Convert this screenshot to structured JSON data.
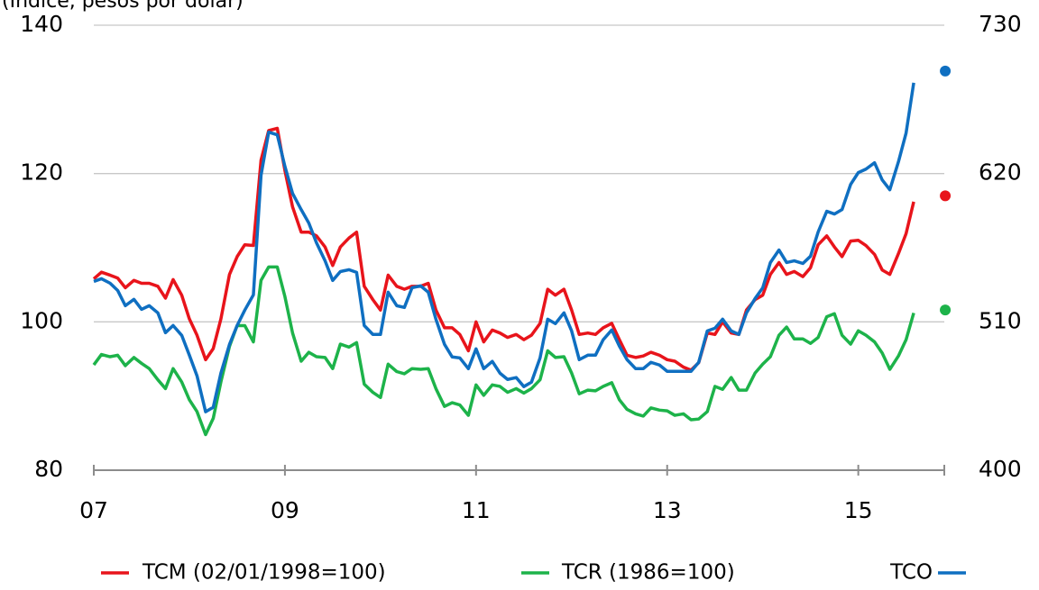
{
  "chart_data": {
    "type": "line",
    "subtitle": "(Índice, pesos por dólar)",
    "x": [
      2007,
      2007.08,
      2007.17,
      2007.25,
      2007.33,
      2007.42,
      2007.5,
      2007.58,
      2007.67,
      2007.75,
      2007.83,
      2007.92,
      2008,
      2008.08,
      2008.17,
      2008.25,
      2008.33,
      2008.42,
      2008.5,
      2008.58,
      2008.67,
      2008.75,
      2008.83,
      2008.92,
      2009,
      2009.08,
      2009.17,
      2009.25,
      2009.33,
      2009.42,
      2009.5,
      2009.58,
      2009.67,
      2009.75,
      2009.83,
      2009.92,
      2010,
      2010.08,
      2010.17,
      2010.25,
      2010.33,
      2010.42,
      2010.5,
      2010.58,
      2010.67,
      2010.75,
      2010.83,
      2010.92,
      2011,
      2011.08,
      2011.17,
      2011.25,
      2011.33,
      2011.42,
      2011.5,
      2011.58,
      2011.67,
      2011.75,
      2011.83,
      2011.92,
      2012,
      2012.08,
      2012.17,
      2012.25,
      2012.33,
      2012.42,
      2012.5,
      2012.58,
      2012.67,
      2012.75,
      2012.83,
      2012.92,
      2013,
      2013.08,
      2013.17,
      2013.25,
      2013.33,
      2013.42,
      2013.5,
      2013.58,
      2013.67,
      2013.75,
      2013.83,
      2013.92,
      2014,
      2014.08,
      2014.17,
      2014.25,
      2014.33,
      2014.42,
      2014.5,
      2014.58,
      2014.67,
      2014.75,
      2014.83,
      2014.92,
      2015,
      2015.08,
      2015.17,
      2015.25,
      2015.33,
      2015.42,
      2015.5,
      2015.58
    ],
    "series": [
      {
        "name": "TCM (02/01/1998=100)",
        "color": "#e8141b",
        "values": [
          105.8,
          106.7,
          106.3,
          105.9,
          104.6,
          105.6,
          105.2,
          105.2,
          104.8,
          103.2,
          105.7,
          103.6,
          100.4,
          98.2,
          94.9,
          96.4,
          100.4,
          106.4,
          108.8,
          110.4,
          110.3,
          121.8,
          125.8,
          126.1,
          120.4,
          115.5,
          112.1,
          112.1,
          111.6,
          110.1,
          107.6,
          110.1,
          111.3,
          112.1,
          104.8,
          103.0,
          101.6,
          106.3,
          104.8,
          104.4,
          104.8,
          104.8,
          105.2,
          101.6,
          99.2,
          99.2,
          98.3,
          96.1,
          100.0,
          97.3,
          98.9,
          98.5,
          97.9,
          98.3,
          97.6,
          98.2,
          99.8,
          104.4,
          103.6,
          104.4,
          101.6,
          98.3,
          98.5,
          98.3,
          99.2,
          99.8,
          97.6,
          95.5,
          95.2,
          95.4,
          95.9,
          95.5,
          94.9,
          94.7,
          93.9,
          93.5,
          94.5,
          98.5,
          98.3,
          100.0,
          98.5,
          98.3,
          101.6,
          103.0,
          103.6,
          106.4,
          108.0,
          106.4,
          106.8,
          106.1,
          107.3,
          110.4,
          111.6,
          110.1,
          108.8,
          110.9,
          111.0,
          110.3,
          109.1,
          107.0,
          106.4,
          109.2,
          111.9,
          116.2
        ]
      },
      {
        "name": "TCR (1986=100)",
        "color": "#1db34a",
        "values": [
          94.2,
          95.6,
          95.3,
          95.5,
          94.1,
          95.2,
          94.4,
          93.7,
          92.2,
          91.0,
          93.7,
          91.9,
          89.5,
          87.9,
          84.8,
          87.0,
          91.9,
          96.7,
          99.5,
          99.5,
          97.3,
          105.6,
          107.4,
          107.4,
          103.4,
          98.5,
          94.7,
          95.9,
          95.3,
          95.2,
          93.7,
          97.0,
          96.6,
          97.2,
          91.6,
          90.5,
          89.8,
          94.3,
          93.3,
          93.0,
          93.7,
          93.6,
          93.7,
          91.0,
          88.6,
          89.1,
          88.8,
          87.4,
          91.5,
          90.1,
          91.5,
          91.3,
          90.5,
          91.0,
          90.4,
          91.0,
          92.2,
          96.1,
          95.2,
          95.3,
          93.1,
          90.3,
          90.8,
          90.7,
          91.3,
          91.8,
          89.5,
          88.2,
          87.6,
          87.3,
          88.4,
          88.1,
          88.0,
          87.4,
          87.6,
          86.8,
          86.9,
          87.9,
          91.3,
          90.9,
          92.5,
          90.8,
          90.8,
          93.1,
          94.3,
          95.3,
          98.2,
          99.3,
          97.7,
          97.7,
          97.1,
          97.9,
          100.7,
          101.1,
          98.2,
          97.0,
          98.8,
          98.2,
          97.3,
          95.8,
          93.6,
          95.4,
          97.6,
          101.2
        ]
      },
      {
        "name": "TCO",
        "color": "#0f6fc1",
        "axis": "y2",
        "values": [
          540,
          542,
          538.7,
          533.3,
          522,
          526.7,
          519.3,
          522,
          516.7,
          502,
          507.3,
          500,
          485.3,
          470,
          443.3,
          446.7,
          472,
          493.3,
          507.3,
          518.7,
          530,
          618.7,
          650.7,
          648.7,
          625.3,
          605.3,
          593.3,
          583.3,
          568.7,
          555.3,
          540.7,
          547.3,
          548.7,
          546.7,
          507.3,
          500.7,
          500.7,
          532,
          522,
          520.7,
          535.3,
          536.7,
          532,
          512,
          493.3,
          484,
          483.3,
          475.3,
          490,
          475.3,
          480.7,
          472,
          467.3,
          468.7,
          462,
          465.3,
          483.3,
          512,
          508.7,
          516.7,
          503.3,
          482,
          485.3,
          485.3,
          496.7,
          504,
          492,
          482,
          475.3,
          475.3,
          480,
          478,
          473.3,
          473.3,
          473.3,
          473.3,
          480,
          503.3,
          505.3,
          512,
          503.3,
          500.7,
          516.7,
          527.3,
          535.3,
          554,
          563.3,
          554,
          555.3,
          553.3,
          558.7,
          576.7,
          592,
          590,
          593.3,
          612,
          620.7,
          623.3,
          628,
          615.3,
          608,
          628.7,
          650,
          687.3
        ]
      }
    ],
    "markers": [
      {
        "x": 2015.91,
        "value": 696,
        "color": "#0f6fc1",
        "axis": "y2"
      },
      {
        "x": 2015.91,
        "value": 117,
        "color": "#e8141b"
      },
      {
        "x": 2015.91,
        "value": 101.6,
        "color": "#1db34a"
      }
    ],
    "xlim": [
      2007,
      2015.9
    ],
    "xticks": [
      {
        "value": 2007,
        "label": "07"
      },
      {
        "value": 2009,
        "label": "09"
      },
      {
        "value": 2011,
        "label": "11"
      },
      {
        "value": 2013,
        "label": "13"
      },
      {
        "value": 2015,
        "label": "15"
      }
    ],
    "ylim": [
      80,
      140
    ],
    "yticks": [
      80,
      100,
      120,
      140
    ],
    "y2lim": [
      400,
      730
    ],
    "y2ticks": [
      400,
      510,
      620,
      730
    ],
    "grid": true
  }
}
